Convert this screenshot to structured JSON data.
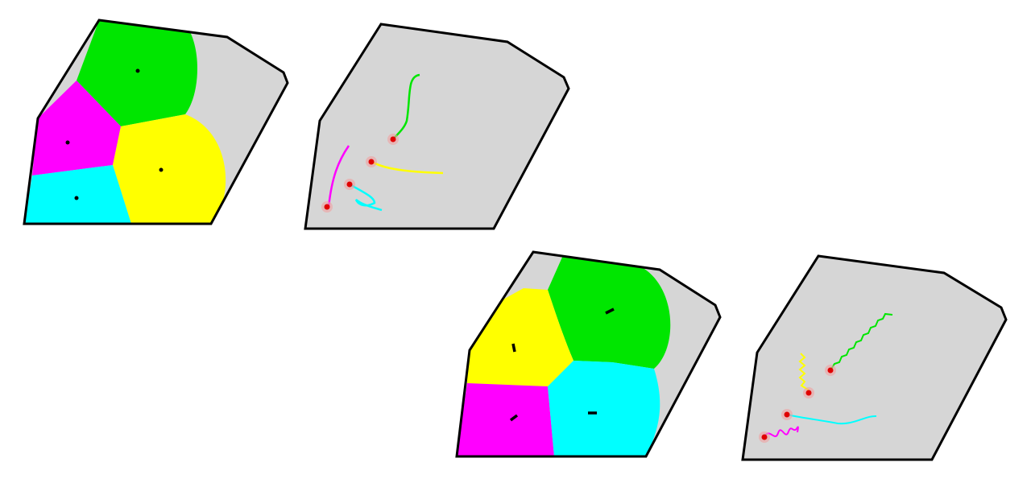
{
  "colors": {
    "region_fill": "#d6d6d6",
    "boundary": "#000000",
    "agent_marker": "#e00000",
    "agent_halo": "#f0a0a0",
    "green": "#00e600",
    "magenta": "#ff00ff",
    "yellow": "#ffff00",
    "cyan": "#00ffff"
  },
  "figures": [
    {
      "id": "top",
      "partition": [
        "green",
        "magenta",
        "yellow",
        "cyan"
      ],
      "trajectories": [
        "green",
        "magenta",
        "yellow",
        "cyan"
      ]
    },
    {
      "id": "bottom",
      "partition": [
        "green",
        "yellow",
        "magenta",
        "cyan"
      ],
      "trajectories": [
        "green",
        "yellow",
        "magenta",
        "cyan"
      ]
    }
  ]
}
